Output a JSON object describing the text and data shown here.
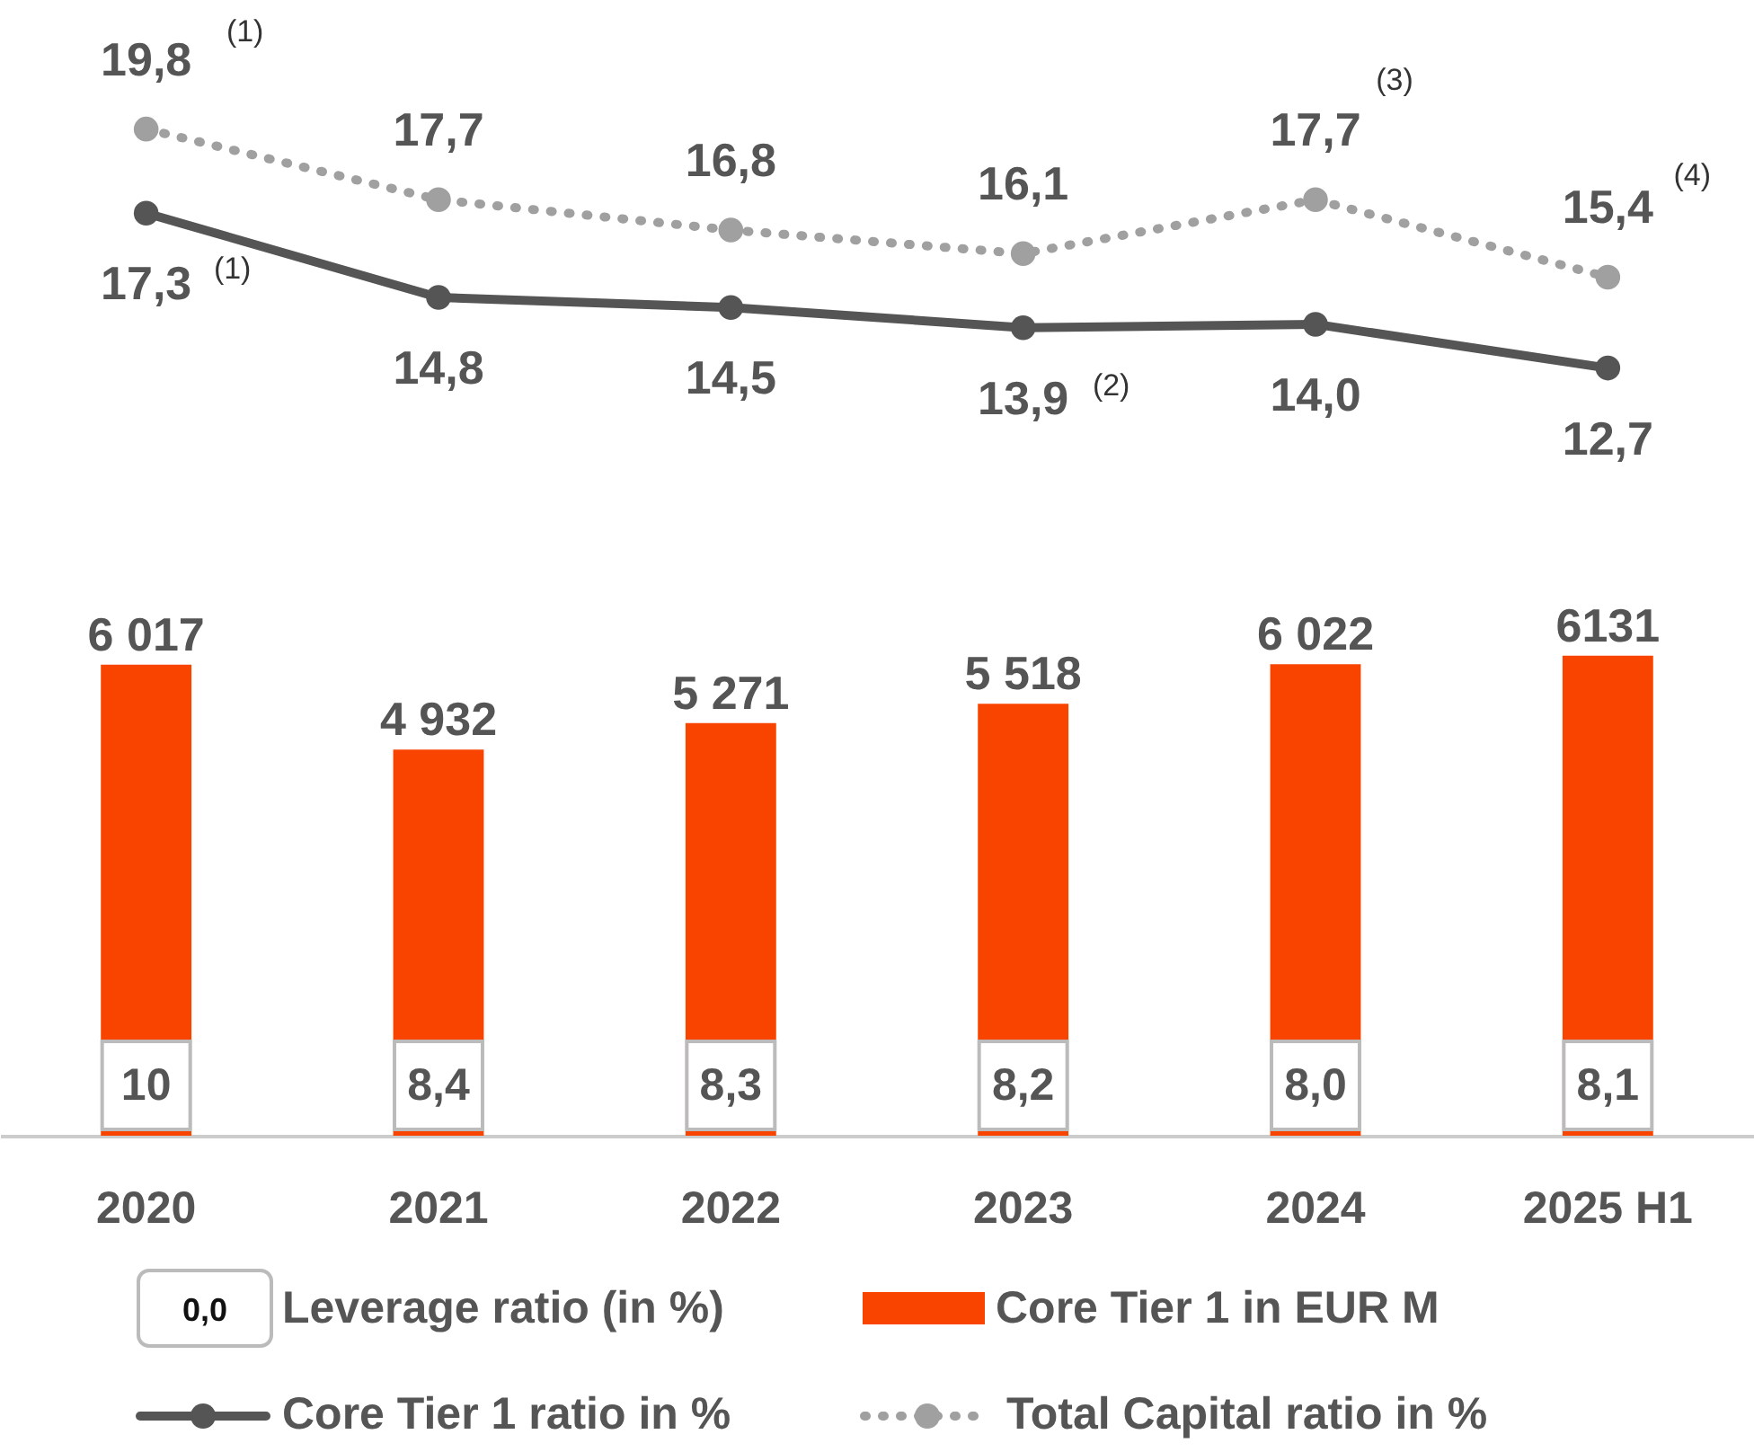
{
  "chart_data": [
    {
      "type": "line",
      "categories": [
        null,
        null,
        null,
        null,
        null,
        null
      ],
      "marker": "circle",
      "legend": "bottom",
      "series": [
        {
          "name": "Core Tier 1 ratio in %",
          "color": "#555555",
          "line_style": "solid",
          "values": [
            17.3,
            14.8,
            14.5,
            13.9,
            14.0,
            12.7
          ],
          "value_labels": [
            "17,3",
            "14,8",
            "14,5",
            "13,9",
            "14,0",
            "12,7"
          ]
        },
        {
          "name": "Total Capital ratio in %",
          "color": "#a0a0a0",
          "line_style": "dotted",
          "values": [
            19.8,
            17.7,
            16.8,
            16.1,
            17.7,
            15.4
          ],
          "value_labels": [
            "19,8",
            "17,7",
            "16,8",
            "16,1",
            "17,7",
            "15,4"
          ]
        }
      ],
      "annotations": [
        "(1)",
        "(1)",
        "(2)",
        "(3)",
        "(4)"
      ]
    },
    {
      "type": "bar",
      "categories": [
        "2020",
        "2021",
        "2022",
        "2023",
        "2024",
        "2025 H1"
      ],
      "legend": "bottom",
      "series": [
        {
          "name": "Core Tier 1 in EUR M",
          "color": "#f94400",
          "values": [
            6017,
            4932,
            5271,
            5518,
            6022,
            6131
          ],
          "value_labels": [
            "6 017",
            "4 932",
            "5 271",
            "5 518",
            "6 022",
            "6131"
          ]
        }
      ]
    },
    {
      "type": "other",
      "categories": [
        null,
        null,
        null,
        null,
        null,
        null
      ],
      "legend": "bottom",
      "series": [
        {
          "name": "Leverage ratio (in %)",
          "color": "#ffffff",
          "values": [
            10,
            8.4,
            8.3,
            8.2,
            8.0,
            8.1
          ],
          "value_labels": [
            "10",
            "8,4",
            "8,3",
            "8,2",
            "8,0",
            "8,1"
          ]
        }
      ],
      "annotations": [
        "0,0"
      ]
    }
  ]
}
